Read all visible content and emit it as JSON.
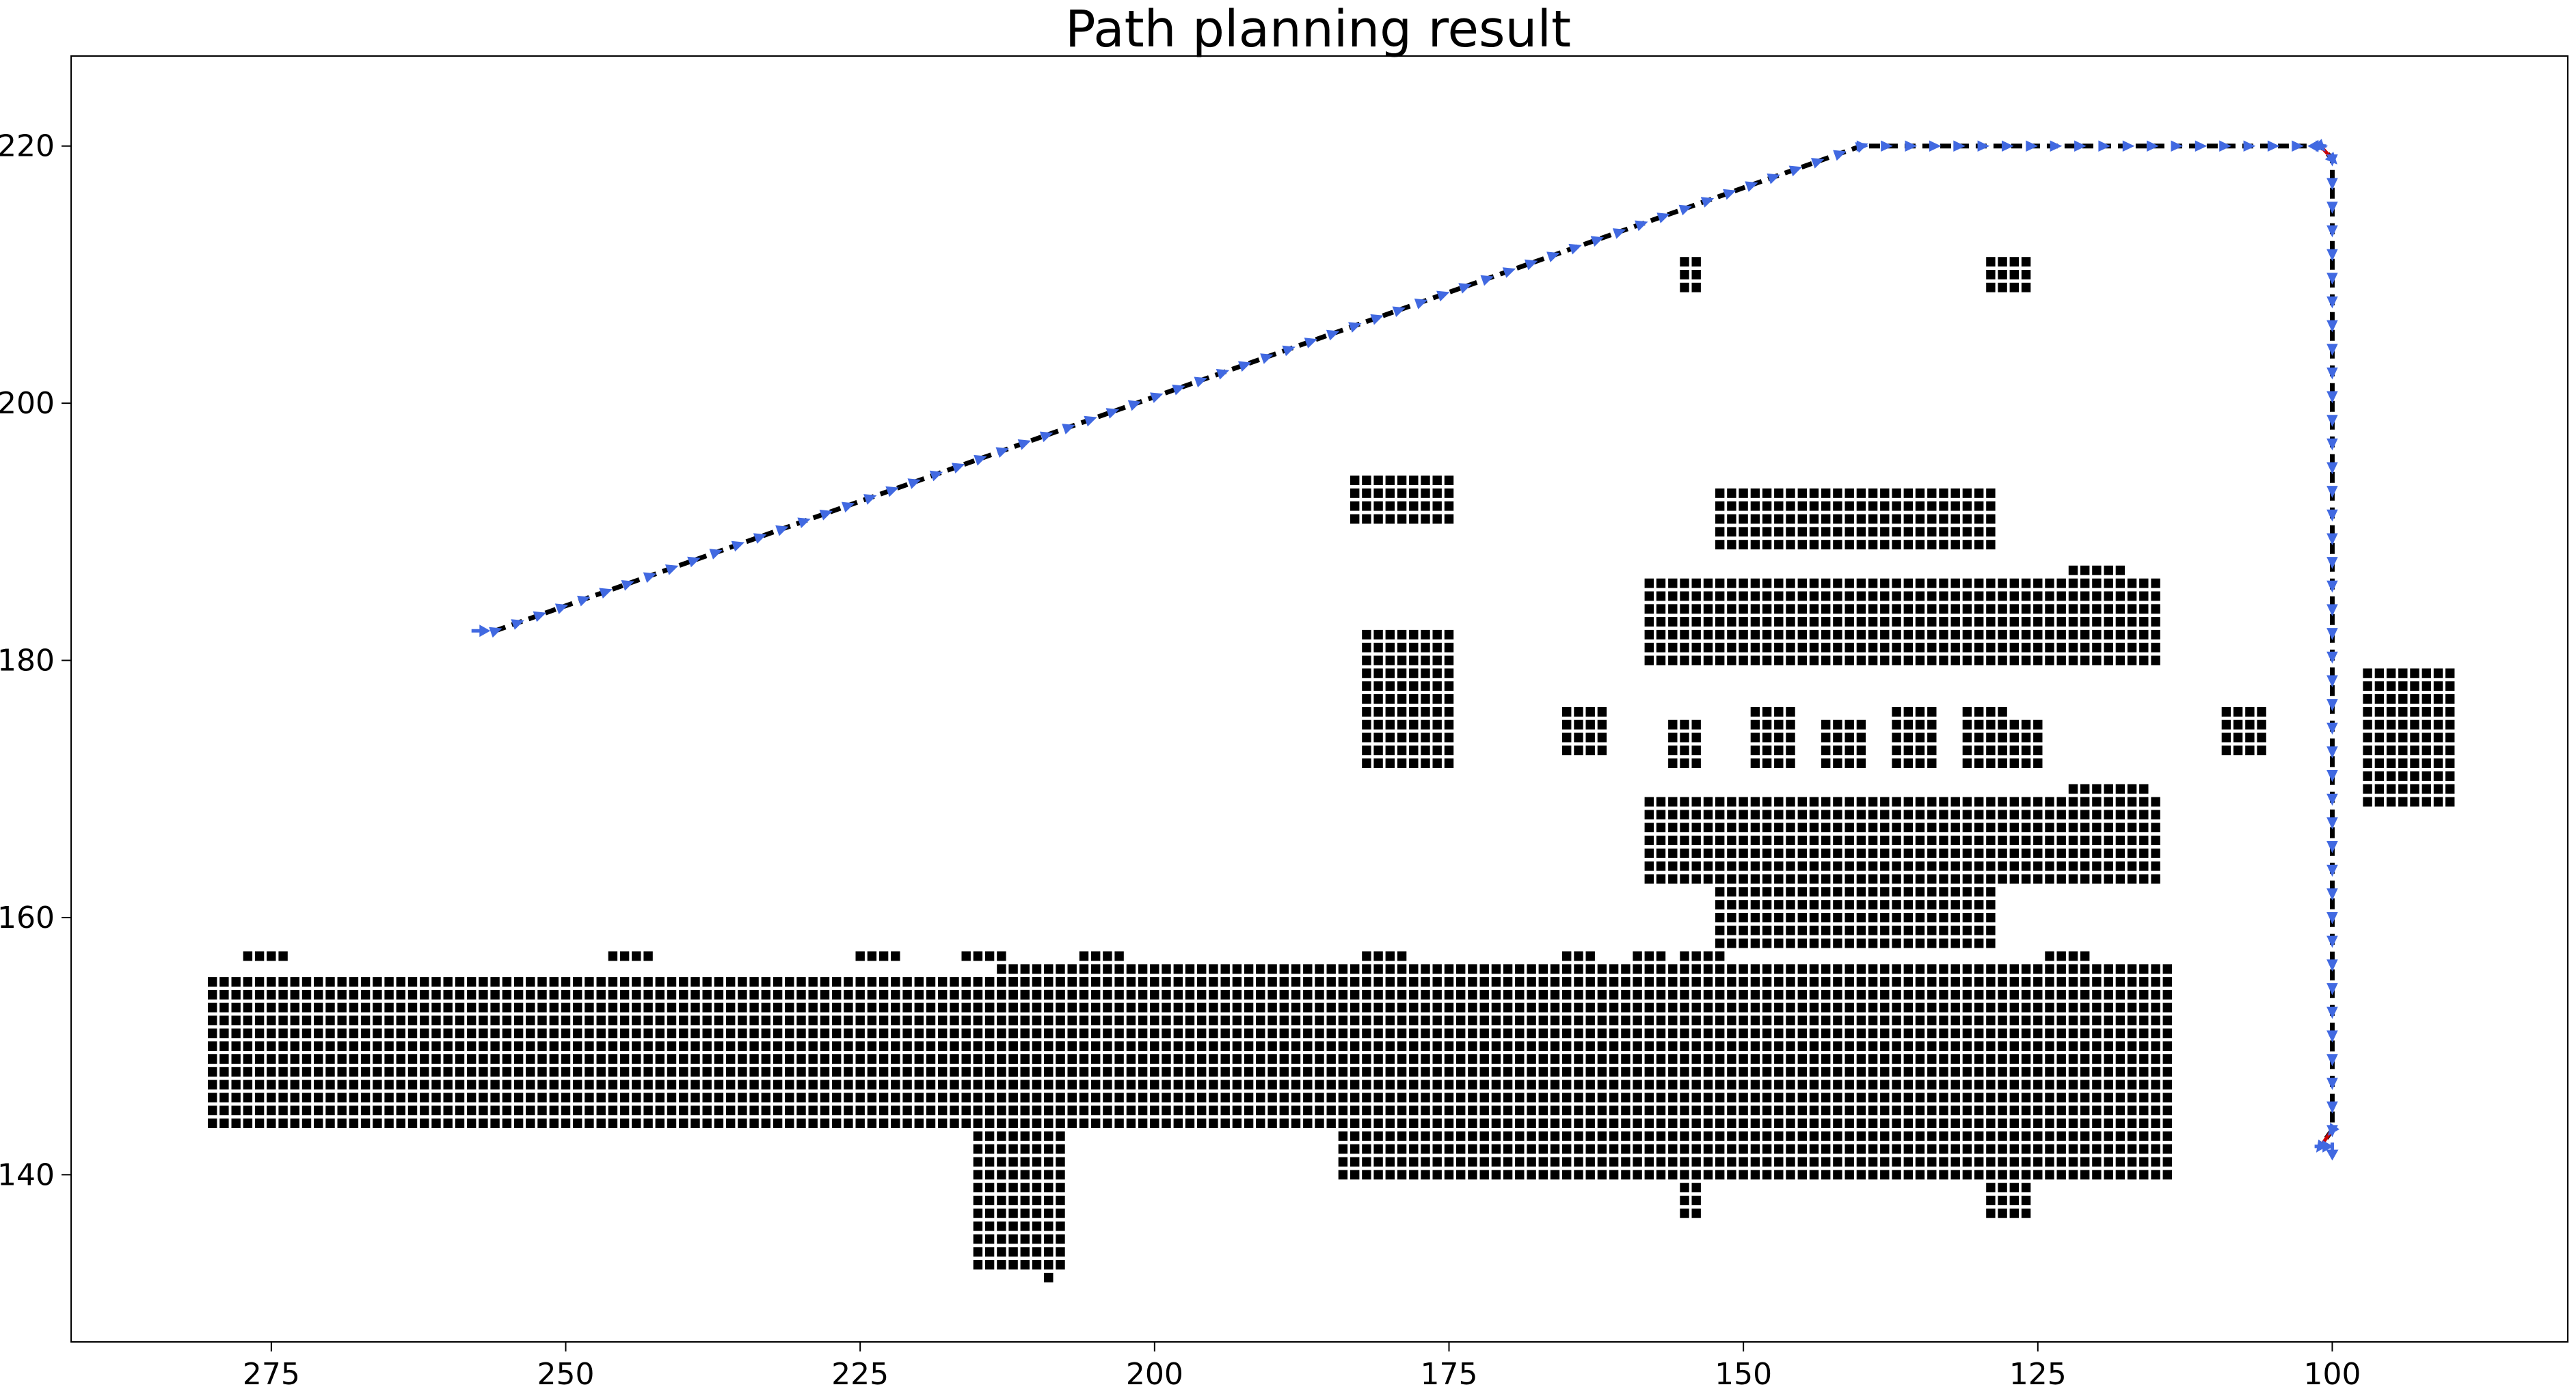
{
  "chart_data": {
    "type": "scatter",
    "title": "Path planning result",
    "xlabel": "",
    "ylabel": "",
    "xlim": [
      292,
      80
    ],
    "ylim": [
      227,
      127
    ],
    "x_inverted": true,
    "y_inverted": true,
    "xticks": [
      275,
      250,
      225,
      200,
      175,
      150,
      125,
      100
    ],
    "yticks": [
      140,
      160,
      180,
      200,
      220
    ],
    "grid": false,
    "legend": "none",
    "colors": {
      "obstacle": "#000000",
      "path_marker": "#4169e1",
      "path_line": "#000000",
      "heading": "#cc0000"
    },
    "series": [
      {
        "kind": "obstacle_blocks",
        "blocks": [
          {
            "x": [
              114,
              215
            ],
            "y": [
              144,
              155
            ]
          },
          {
            "x": [
              207,
              280
            ],
            "y": [
              144,
              155
            ]
          },
          {
            "x": [
              114,
              184
            ],
            "y": [
              140,
              143
            ]
          },
          {
            "x": [
              114,
              213
            ],
            "y": [
              156,
              156
            ]
          },
          {
            "x": [
              208,
              215
            ],
            "y": [
              133,
              143
            ]
          },
          {
            "x": [
              209,
              209
            ],
            "y": [
              132,
              132
            ]
          },
          {
            "x": [
              154,
              155
            ],
            "y": [
              137,
              139
            ]
          },
          {
            "x": [
              126,
              129
            ],
            "y": [
              137,
              139
            ]
          },
          {
            "x": [
              274,
              277
            ],
            "y": [
              157,
              157
            ]
          },
          {
            "x": [
              243,
              246
            ],
            "y": [
              157,
              157
            ]
          },
          {
            "x": [
              222,
              225
            ],
            "y": [
              157,
              157
            ]
          },
          {
            "x": [
              213,
              216
            ],
            "y": [
              157,
              157
            ]
          },
          {
            "x": [
              203,
              206
            ],
            "y": [
              157,
              157
            ]
          },
          {
            "x": [
              179,
              182
            ],
            "y": [
              157,
              157
            ]
          },
          {
            "x": [
              163,
              165
            ],
            "y": [
              157,
              157
            ]
          },
          {
            "x": [
              157,
              159
            ],
            "y": [
              157,
              157
            ]
          },
          {
            "x": [
              152,
              155
            ],
            "y": [
              157,
              157
            ]
          },
          {
            "x": [
              121,
              124
            ],
            "y": [
              157,
              157
            ]
          },
          {
            "x": [
              129,
              152
            ],
            "y": [
              158,
              162
            ]
          },
          {
            "x": [
              115,
              158
            ],
            "y": [
              163,
              169
            ]
          },
          {
            "x": [
              116,
              122
            ],
            "y": [
              170,
              170
            ]
          },
          {
            "x": [
              175,
              182
            ],
            "y": [
              172,
              182
            ]
          },
          {
            "x": [
              162,
              165
            ],
            "y": [
              173,
              176
            ]
          },
          {
            "x": [
              154,
              156
            ],
            "y": [
              172,
              175
            ]
          },
          {
            "x": [
              146,
              149
            ],
            "y": [
              172,
              176
            ]
          },
          {
            "x": [
              140,
              143
            ],
            "y": [
              172,
              175
            ]
          },
          {
            "x": [
              134,
              137
            ],
            "y": [
              172,
              176
            ]
          },
          {
            "x": [
              128,
              131
            ],
            "y": [
              172,
              176
            ]
          },
          {
            "x": [
              125,
              128
            ],
            "y": [
              172,
              175
            ]
          },
          {
            "x": [
              106,
              109
            ],
            "y": [
              173,
              176
            ]
          },
          {
            "x": [
              90,
              97
            ],
            "y": [
              169,
              179
            ]
          },
          {
            "x": [
              115,
              158
            ],
            "y": [
              180,
              186
            ]
          },
          {
            "x": [
              118,
              122
            ],
            "y": [
              187,
              187
            ]
          },
          {
            "x": [
              129,
              152
            ],
            "y": [
              189,
              193
            ]
          },
          {
            "x": [
              175,
              183
            ],
            "y": [
              191,
              194
            ]
          },
          {
            "x": [
              154,
              155
            ],
            "y": [
              209,
              211
            ]
          },
          {
            "x": [
              126,
              129
            ],
            "y": [
              209,
              211
            ]
          }
        ]
      },
      {
        "kind": "path",
        "points": [
          {
            "x": 256,
            "y": 182.3
          },
          {
            "x": 140,
            "y": 220
          },
          {
            "x": 101,
            "y": 220
          },
          {
            "x": 100,
            "y": 219
          },
          {
            "x": 100,
            "y": 143.5
          },
          {
            "x": 101,
            "y": 142.2
          }
        ],
        "heading_markers": [
          {
            "x": 258,
            "y": 182.3,
            "dx": -1.6,
            "dy": 0
          },
          {
            "x": 100.5,
            "y": 220,
            "dx": 1.6,
            "dy": 0
          },
          {
            "x": 100,
            "y": 142.5,
            "dx": 0,
            "dy": -1.4
          },
          {
            "x": 101.5,
            "y": 142.2,
            "dx": -1.6,
            "dy": 0
          }
        ]
      }
    ]
  }
}
